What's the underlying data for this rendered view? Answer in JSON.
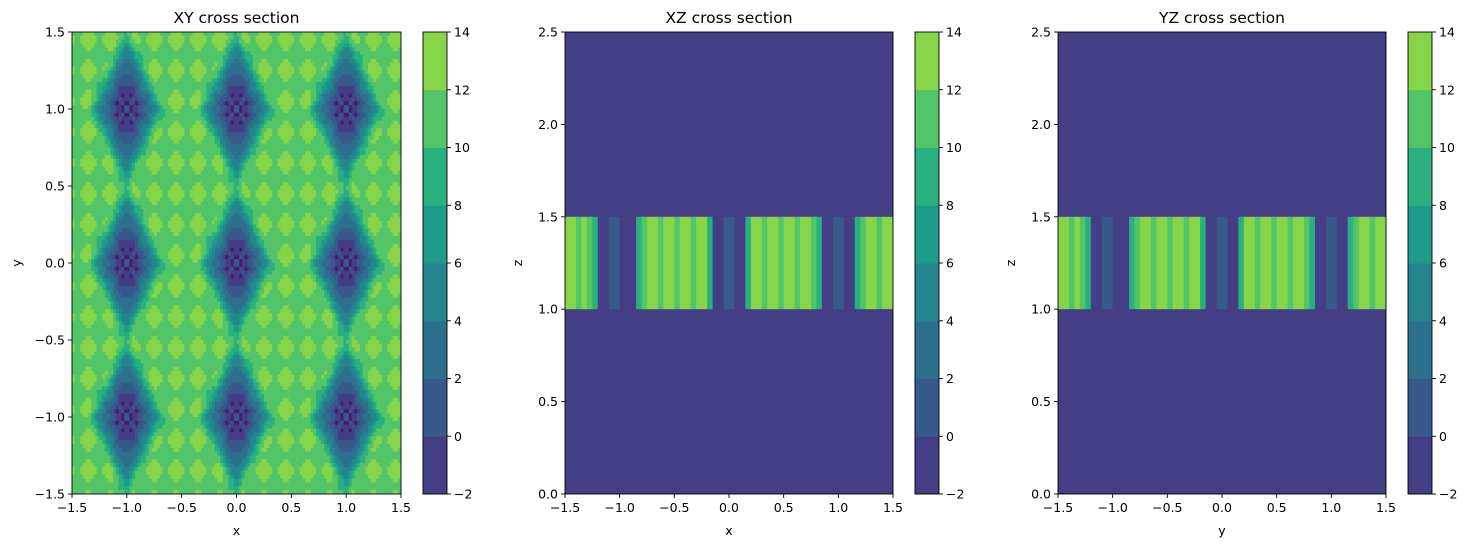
{
  "colorbar": {
    "levels": [
      -2,
      0,
      2,
      4,
      6,
      8,
      10,
      12,
      14
    ],
    "colors": [
      "#481a6c",
      "#433e85",
      "#38598c",
      "#2d708e",
      "#25858e",
      "#1e9b8a",
      "#2ab07f",
      "#52c569",
      "#86d549",
      "#c2df23"
    ],
    "tick_labels": [
      "−2",
      "0",
      "2",
      "4",
      "6",
      "8",
      "10",
      "12",
      "14"
    ]
  },
  "chart_data": [
    {
      "type": "heatmap",
      "title": "XY cross section",
      "xlabel": "x",
      "ylabel": "y",
      "xlim": [
        -1.5,
        1.5
      ],
      "ylim": [
        -1.5,
        1.5
      ],
      "xticks": [
        -1.5,
        -1.0,
        -0.5,
        0.0,
        0.5,
        1.0,
        1.5
      ],
      "xtick_labels": [
        "−1.5",
        "−1.0",
        "−0.5",
        "0.0",
        "0.5",
        "1.0",
        "1.5"
      ],
      "yticks": [
        -1.5,
        -1.0,
        -0.5,
        0.0,
        0.5,
        1.0,
        1.5
      ],
      "ytick_labels": [
        "−1.5",
        "−1.0",
        "−0.5",
        "0.0",
        "0.5",
        "1.0",
        "1.5"
      ],
      "field": "periodic contour pattern: low values (−2..6) in diamond-shaped pockets centred at x∈{−1,0,1}, y∈{−1,0,1}; high values (10..14) elsewhere in a checkered lattice",
      "pocket_centers_x": [
        -1,
        0,
        1
      ],
      "pocket_centers_y": [
        -1,
        0,
        1
      ]
    },
    {
      "type": "heatmap",
      "title": "XZ cross section",
      "xlabel": "x",
      "ylabel": "z",
      "xlim": [
        -1.5,
        1.5
      ],
      "ylim": [
        0.0,
        2.5
      ],
      "xticks": [
        -1.5,
        -1.0,
        -0.5,
        0.0,
        0.5,
        1.0,
        1.5
      ],
      "xtick_labels": [
        "−1.5",
        "−1.0",
        "−0.5",
        "0.0",
        "0.5",
        "1.0",
        "1.5"
      ],
      "yticks": [
        0.0,
        0.5,
        1.0,
        1.5,
        2.0,
        2.5
      ],
      "ytick_labels": [
        "0.0",
        "0.5",
        "1.0",
        "1.5",
        "2.0",
        "2.5"
      ],
      "background_value": -1,
      "band_z": [
        1.0,
        1.5
      ],
      "band_stripes": [
        {
          "x0": -1.5,
          "x1": -1.4,
          "value": 13
        },
        {
          "x0": -1.4,
          "x1": -1.35,
          "value": 11
        },
        {
          "x0": -1.35,
          "x1": -1.3,
          "value": 13
        },
        {
          "x0": -1.3,
          "x1": -1.25,
          "value": 11
        },
        {
          "x0": -1.25,
          "x1": -1.2,
          "value": 9
        },
        {
          "x0": -1.2,
          "x1": -1.1,
          "value": -1
        },
        {
          "x0": -1.1,
          "x1": -1.0,
          "value": 1
        },
        {
          "x0": -1.0,
          "x1": -0.85,
          "value": -1
        },
        {
          "x0": -0.85,
          "x1": -0.8,
          "value": 9
        },
        {
          "x0": -0.8,
          "x1": -0.75,
          "value": 11
        },
        {
          "x0": -0.75,
          "x1": -0.65,
          "value": 13
        },
        {
          "x0": -0.65,
          "x1": -0.6,
          "value": 11
        },
        {
          "x0": -0.6,
          "x1": -0.5,
          "value": 13
        },
        {
          "x0": -0.5,
          "x1": -0.45,
          "value": 11
        },
        {
          "x0": -0.45,
          "x1": -0.35,
          "value": 13
        },
        {
          "x0": -0.35,
          "x1": -0.3,
          "value": 11
        },
        {
          "x0": -0.3,
          "x1": -0.2,
          "value": 13
        },
        {
          "x0": -0.2,
          "x1": -0.15,
          "value": 9
        },
        {
          "x0": -0.15,
          "x1": -0.05,
          "value": -1
        },
        {
          "x0": -0.05,
          "x1": 0.05,
          "value": 1
        },
        {
          "x0": 0.05,
          "x1": 0.15,
          "value": -1
        },
        {
          "x0": 0.15,
          "x1": 0.2,
          "value": 9
        },
        {
          "x0": 0.2,
          "x1": 0.3,
          "value": 13
        },
        {
          "x0": 0.3,
          "x1": 0.35,
          "value": 11
        },
        {
          "x0": 0.35,
          "x1": 0.45,
          "value": 13
        },
        {
          "x0": 0.45,
          "x1": 0.5,
          "value": 11
        },
        {
          "x0": 0.5,
          "x1": 0.6,
          "value": 13
        },
        {
          "x0": 0.6,
          "x1": 0.65,
          "value": 11
        },
        {
          "x0": 0.65,
          "x1": 0.75,
          "value": 13
        },
        {
          "x0": 0.75,
          "x1": 0.8,
          "value": 11
        },
        {
          "x0": 0.8,
          "x1": 0.85,
          "value": 9
        },
        {
          "x0": 0.85,
          "x1": 0.95,
          "value": -1
        },
        {
          "x0": 0.95,
          "x1": 1.05,
          "value": 1
        },
        {
          "x0": 1.05,
          "x1": 1.15,
          "value": -1
        },
        {
          "x0": 1.15,
          "x1": 1.2,
          "value": 9
        },
        {
          "x0": 1.2,
          "x1": 1.25,
          "value": 11
        },
        {
          "x0": 1.25,
          "x1": 1.35,
          "value": 13
        },
        {
          "x0": 1.35,
          "x1": 1.4,
          "value": 11
        },
        {
          "x0": 1.4,
          "x1": 1.5,
          "value": 13
        }
      ]
    },
    {
      "type": "heatmap",
      "title": "YZ cross section",
      "xlabel": "y",
      "ylabel": "z",
      "xlim": [
        -1.5,
        1.5
      ],
      "ylim": [
        0.0,
        2.5
      ],
      "xticks": [
        -1.5,
        -1.0,
        -0.5,
        0.0,
        0.5,
        1.0,
        1.5
      ],
      "xtick_labels": [
        "−1.5",
        "−1.0",
        "−0.5",
        "0.0",
        "0.5",
        "1.0",
        "1.5"
      ],
      "yticks": [
        0.0,
        0.5,
        1.0,
        1.5,
        2.0,
        2.5
      ],
      "ytick_labels": [
        "0.0",
        "0.5",
        "1.0",
        "1.5",
        "2.0",
        "2.5"
      ],
      "background_value": -1,
      "band_z": [
        1.0,
        1.5
      ],
      "band_stripes": [
        {
          "x0": -1.5,
          "x1": -1.4,
          "value": 13
        },
        {
          "x0": -1.4,
          "x1": -1.35,
          "value": 11
        },
        {
          "x0": -1.35,
          "x1": -1.3,
          "value": 13
        },
        {
          "x0": -1.3,
          "x1": -1.25,
          "value": 11
        },
        {
          "x0": -1.25,
          "x1": -1.2,
          "value": 9
        },
        {
          "x0": -1.2,
          "x1": -1.1,
          "value": -1
        },
        {
          "x0": -1.1,
          "x1": -1.0,
          "value": 1
        },
        {
          "x0": -1.0,
          "x1": -0.85,
          "value": -1
        },
        {
          "x0": -0.85,
          "x1": -0.8,
          "value": 9
        },
        {
          "x0": -0.8,
          "x1": -0.75,
          "value": 11
        },
        {
          "x0": -0.75,
          "x1": -0.65,
          "value": 13
        },
        {
          "x0": -0.65,
          "x1": -0.6,
          "value": 11
        },
        {
          "x0": -0.6,
          "x1": -0.5,
          "value": 13
        },
        {
          "x0": -0.5,
          "x1": -0.45,
          "value": 11
        },
        {
          "x0": -0.45,
          "x1": -0.35,
          "value": 13
        },
        {
          "x0": -0.35,
          "x1": -0.3,
          "value": 11
        },
        {
          "x0": -0.3,
          "x1": -0.2,
          "value": 13
        },
        {
          "x0": -0.2,
          "x1": -0.15,
          "value": 9
        },
        {
          "x0": -0.15,
          "x1": -0.05,
          "value": -1
        },
        {
          "x0": -0.05,
          "x1": 0.05,
          "value": 1
        },
        {
          "x0": 0.05,
          "x1": 0.15,
          "value": -1
        },
        {
          "x0": 0.15,
          "x1": 0.2,
          "value": 9
        },
        {
          "x0": 0.2,
          "x1": 0.3,
          "value": 13
        },
        {
          "x0": 0.3,
          "x1": 0.35,
          "value": 11
        },
        {
          "x0": 0.35,
          "x1": 0.45,
          "value": 13
        },
        {
          "x0": 0.45,
          "x1": 0.5,
          "value": 11
        },
        {
          "x0": 0.5,
          "x1": 0.6,
          "value": 13
        },
        {
          "x0": 0.6,
          "x1": 0.65,
          "value": 11
        },
        {
          "x0": 0.65,
          "x1": 0.75,
          "value": 13
        },
        {
          "x0": 0.75,
          "x1": 0.8,
          "value": 11
        },
        {
          "x0": 0.8,
          "x1": 0.85,
          "value": 9
        },
        {
          "x0": 0.85,
          "x1": 0.95,
          "value": -1
        },
        {
          "x0": 0.95,
          "x1": 1.05,
          "value": 1
        },
        {
          "x0": 1.05,
          "x1": 1.15,
          "value": -1
        },
        {
          "x0": 1.15,
          "x1": 1.2,
          "value": 9
        },
        {
          "x0": 1.2,
          "x1": 1.25,
          "value": 11
        },
        {
          "x0": 1.25,
          "x1": 1.35,
          "value": 13
        },
        {
          "x0": 1.35,
          "x1": 1.4,
          "value": 11
        },
        {
          "x0": 1.4,
          "x1": 1.5,
          "value": 13
        }
      ]
    }
  ]
}
